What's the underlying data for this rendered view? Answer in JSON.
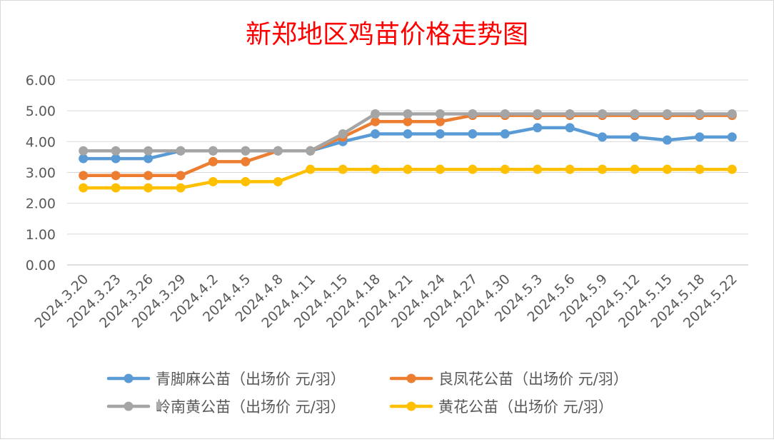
{
  "chart_data": {
    "type": "line",
    "title": "新郑地区鸡苗价格走势图",
    "xlabel": "",
    "ylabel": "",
    "ylim": [
      0,
      6
    ],
    "yticks": [
      "0.00",
      "1.00",
      "2.00",
      "3.00",
      "4.00",
      "5.00",
      "6.00"
    ],
    "grid": true,
    "legend_position": "bottom",
    "categories": [
      "2024.3.20",
      "2024.3.23",
      "2024.3.26",
      "2024.3.29",
      "2024.4.2",
      "2024.4.5",
      "2024.4.8",
      "2024.4.11",
      "2024.4.15",
      "2024.4.18",
      "2024.4.21",
      "2024.4.24",
      "2024.4.27",
      "2024.4.30",
      "2024.5.3",
      "2024.5.6",
      "2024.5.9",
      "2024.5.12",
      "2024.5.15",
      "2024.5.18",
      "2024.5.22"
    ],
    "series": [
      {
        "name": "青脚麻公苗（出场价 元/羽）",
        "color": "#5B9BD5",
        "values": [
          3.45,
          3.45,
          3.45,
          3.7,
          3.7,
          3.7,
          3.7,
          3.7,
          4.0,
          4.25,
          4.25,
          4.25,
          4.25,
          4.25,
          4.45,
          4.45,
          4.15,
          4.15,
          4.05,
          4.15,
          4.15
        ]
      },
      {
        "name": "良凤花公苗（出场价 元/羽）",
        "color": "#ED7D31",
        "values": [
          2.9,
          2.9,
          2.9,
          2.9,
          3.35,
          3.35,
          3.7,
          3.7,
          4.15,
          4.65,
          4.65,
          4.65,
          4.85,
          4.85,
          4.85,
          4.85,
          4.85,
          4.85,
          4.85,
          4.85,
          4.85
        ]
      },
      {
        "name": "岭南黄公苗（出场价 元/羽）",
        "color": "#A5A5A5",
        "values": [
          3.7,
          3.7,
          3.7,
          3.7,
          3.7,
          3.7,
          3.7,
          3.7,
          4.25,
          4.9,
          4.9,
          4.9,
          4.9,
          4.9,
          4.9,
          4.9,
          4.9,
          4.9,
          4.9,
          4.9,
          4.9
        ]
      },
      {
        "name": "黄花公苗（出场价 元/羽）",
        "color": "#FFC000",
        "values": [
          2.5,
          2.5,
          2.5,
          2.5,
          2.7,
          2.7,
          2.7,
          3.1,
          3.1,
          3.1,
          3.1,
          3.1,
          3.1,
          3.1,
          3.1,
          3.1,
          3.1,
          3.1,
          3.1,
          3.1,
          3.1
        ]
      }
    ]
  }
}
